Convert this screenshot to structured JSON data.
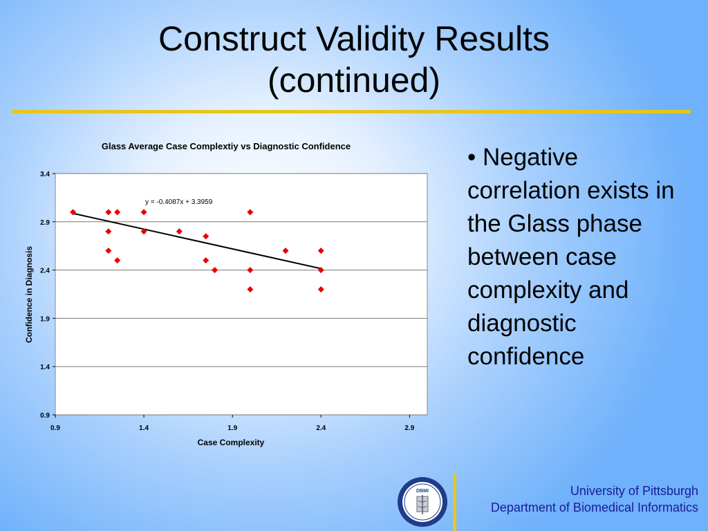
{
  "slide": {
    "title_line1": "Construct Validity Results",
    "title_line2": "(continued)",
    "bullet": "• Negative correlation exists in the Glass phase between case complexity and diagnostic confidence",
    "footer_line1": "University of Pittsburgh",
    "footer_line2": "Department of Biomedical Informatics",
    "seal_text": "DBMI",
    "seal_ring_text": "University of Pittsburgh · Department of Biomedical Informatics",
    "accent_color": "#e8c61a",
    "marker_color": "#e60000"
  },
  "chart_data": {
    "type": "scatter",
    "title": "Glass Average Case Complextiy vs Diagnostic Confidence",
    "xlabel": "Case Complexity",
    "ylabel": "Confidence in Diagnosis",
    "xlim": [
      0.9,
      3.0
    ],
    "ylim": [
      0.9,
      3.4
    ],
    "xticks": [
      "0.9",
      "1.4",
      "1.9",
      "2.4",
      "2.9"
    ],
    "yticks": [
      "3.4",
      "2.9",
      "2.4",
      "1.9",
      "1.4",
      "0.9"
    ],
    "grid": "horizontal",
    "equation": "y = -0.4087x + 3.3959",
    "trendline": {
      "slope": -0.4087,
      "intercept": 3.3959,
      "x_range": [
        1.0,
        2.4
      ]
    },
    "points": [
      {
        "x": 1.0,
        "y": 3.0
      },
      {
        "x": 1.2,
        "y": 3.0
      },
      {
        "x": 1.25,
        "y": 3.0
      },
      {
        "x": 1.4,
        "y": 3.0
      },
      {
        "x": 2.0,
        "y": 3.0
      },
      {
        "x": 1.2,
        "y": 2.8
      },
      {
        "x": 1.4,
        "y": 2.8
      },
      {
        "x": 1.6,
        "y": 2.8
      },
      {
        "x": 1.75,
        "y": 2.75
      },
      {
        "x": 1.2,
        "y": 2.6
      },
      {
        "x": 2.2,
        "y": 2.6
      },
      {
        "x": 2.4,
        "y": 2.6
      },
      {
        "x": 1.25,
        "y": 2.5
      },
      {
        "x": 1.75,
        "y": 2.5
      },
      {
        "x": 1.8,
        "y": 2.4
      },
      {
        "x": 2.0,
        "y": 2.4
      },
      {
        "x": 2.4,
        "y": 2.4
      },
      {
        "x": 2.0,
        "y": 2.2
      },
      {
        "x": 2.4,
        "y": 2.2
      }
    ]
  }
}
